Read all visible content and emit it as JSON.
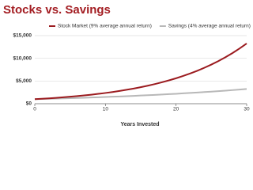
{
  "chart_data": {
    "type": "line",
    "title": "Stocks vs. Savings",
    "x_label": "Years Invested",
    "x": [
      0,
      1,
      2,
      3,
      4,
      5,
      6,
      7,
      8,
      9,
      10,
      11,
      12,
      13,
      14,
      15,
      16,
      17,
      18,
      19,
      20,
      21,
      22,
      23,
      24,
      25,
      26,
      27,
      28,
      29,
      30
    ],
    "series": [
      {
        "name": "Stock Market (9% average annual return)",
        "color": "#9b1b1f",
        "values": [
          1000,
          1090,
          1188,
          1295,
          1412,
          1539,
          1677,
          1828,
          1993,
          2172,
          2367,
          2580,
          2813,
          3066,
          3342,
          3642,
          3970,
          4328,
          4717,
          5142,
          5604,
          6109,
          6659,
          7258,
          7911,
          8623,
          9399,
          10245,
          11167,
          12172,
          13268
        ]
      },
      {
        "name": "Savings (4% average annual return)",
        "color": "#b8b8b8",
        "values": [
          1000,
          1040,
          1082,
          1125,
          1170,
          1217,
          1265,
          1316,
          1369,
          1423,
          1480,
          1539,
          1601,
          1665,
          1732,
          1801,
          1873,
          1948,
          2026,
          2107,
          2191,
          2279,
          2370,
          2465,
          2563,
          2666,
          2772,
          2883,
          2999,
          3119,
          3243
        ]
      }
    ],
    "xlim": [
      0,
      30
    ],
    "xticks": [
      0,
      10,
      20,
      30
    ],
    "ylim": [
      0,
      15000
    ],
    "yticks": [
      {
        "value": 0,
        "label": "$0"
      },
      {
        "value": 5000,
        "label": "$5,000"
      },
      {
        "value": 10000,
        "label": "$10,000"
      },
      {
        "value": 15000,
        "label": "$15,000"
      }
    ],
    "grid": true
  }
}
